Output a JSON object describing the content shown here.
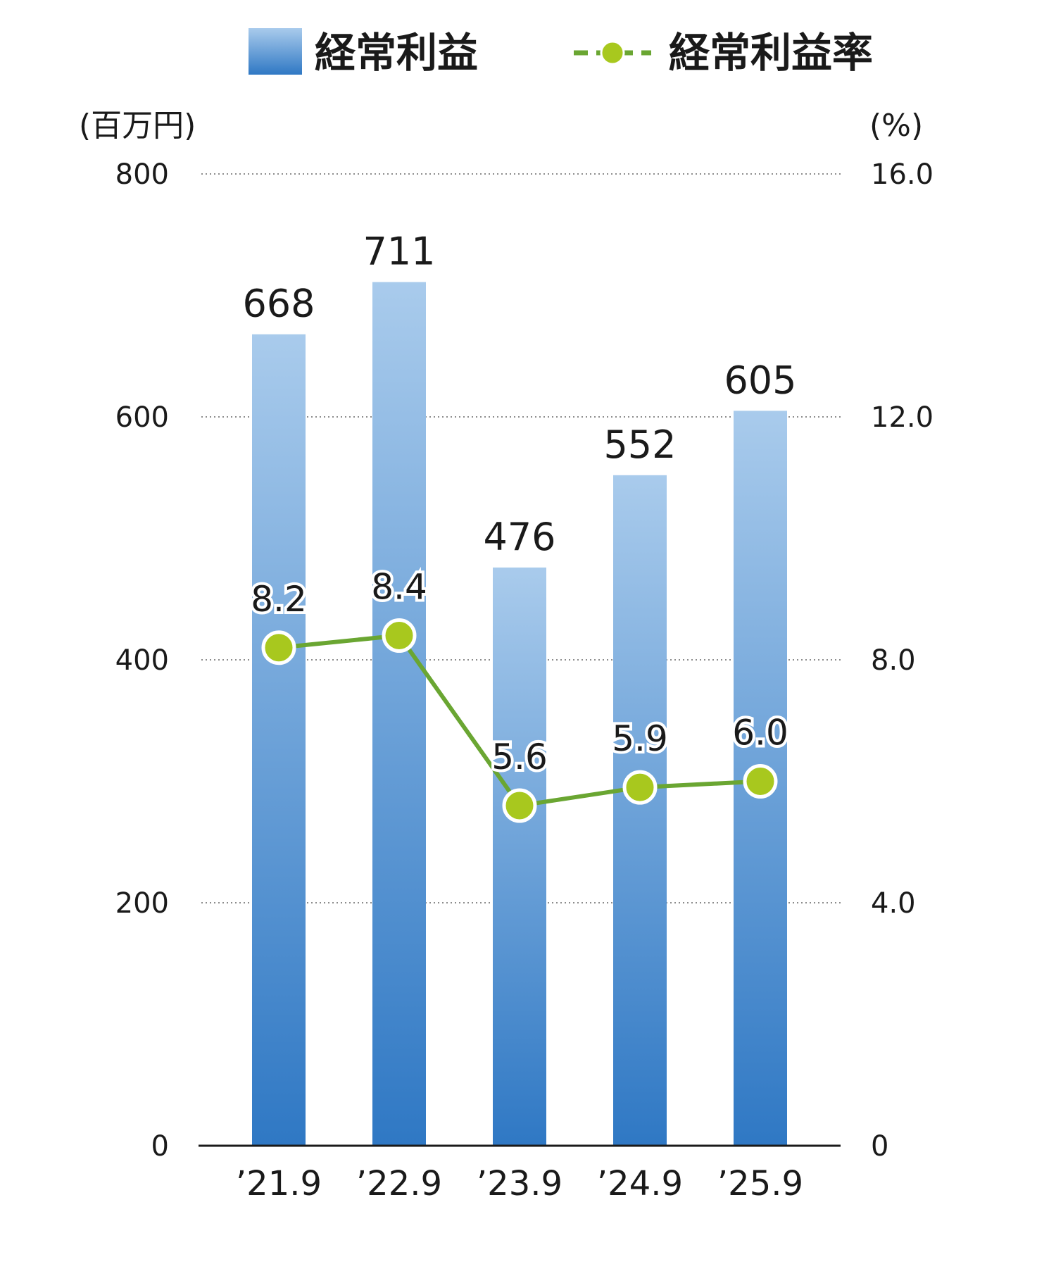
{
  "legend": {
    "bar_label": "経常利益",
    "line_label": "経常利益率"
  },
  "colors": {
    "bar_top": "#a9cbec",
    "bar_bottom": "#2f78c4",
    "line": "#6aa632",
    "marker_fill": "#a8c81e",
    "marker_stroke": "#ffffff"
  },
  "chart_data": {
    "type": "bar",
    "categories": [
      "’21.9",
      "’22.9",
      "’23.9",
      "’24.9",
      "’25.9"
    ],
    "series": [
      {
        "name": "経常利益",
        "type": "bar",
        "axis": "left",
        "values": [
          668,
          711,
          476,
          552,
          605
        ],
        "labels": [
          "668",
          "711",
          "476",
          "552",
          "605"
        ]
      },
      {
        "name": "経常利益率",
        "type": "line",
        "axis": "right",
        "values": [
          8.2,
          8.4,
          5.6,
          5.9,
          6.0
        ],
        "labels": [
          "8.2",
          "8.4",
          "5.6",
          "5.9",
          "6.0"
        ]
      }
    ],
    "left_axis": {
      "unit": "(百万円)",
      "ylim": [
        0,
        800
      ],
      "ticks": [
        0,
        200,
        400,
        600,
        800
      ],
      "tick_labels": [
        "0",
        "200",
        "400",
        "600",
        "800"
      ]
    },
    "right_axis": {
      "unit": "(%)",
      "ylim": [
        0,
        16
      ],
      "ticks": [
        0,
        4,
        8,
        12,
        16
      ],
      "tick_labels": [
        "0",
        "4.0",
        "8.0",
        "12.0",
        "16.0"
      ]
    },
    "grid": true,
    "legend_position": "top"
  }
}
